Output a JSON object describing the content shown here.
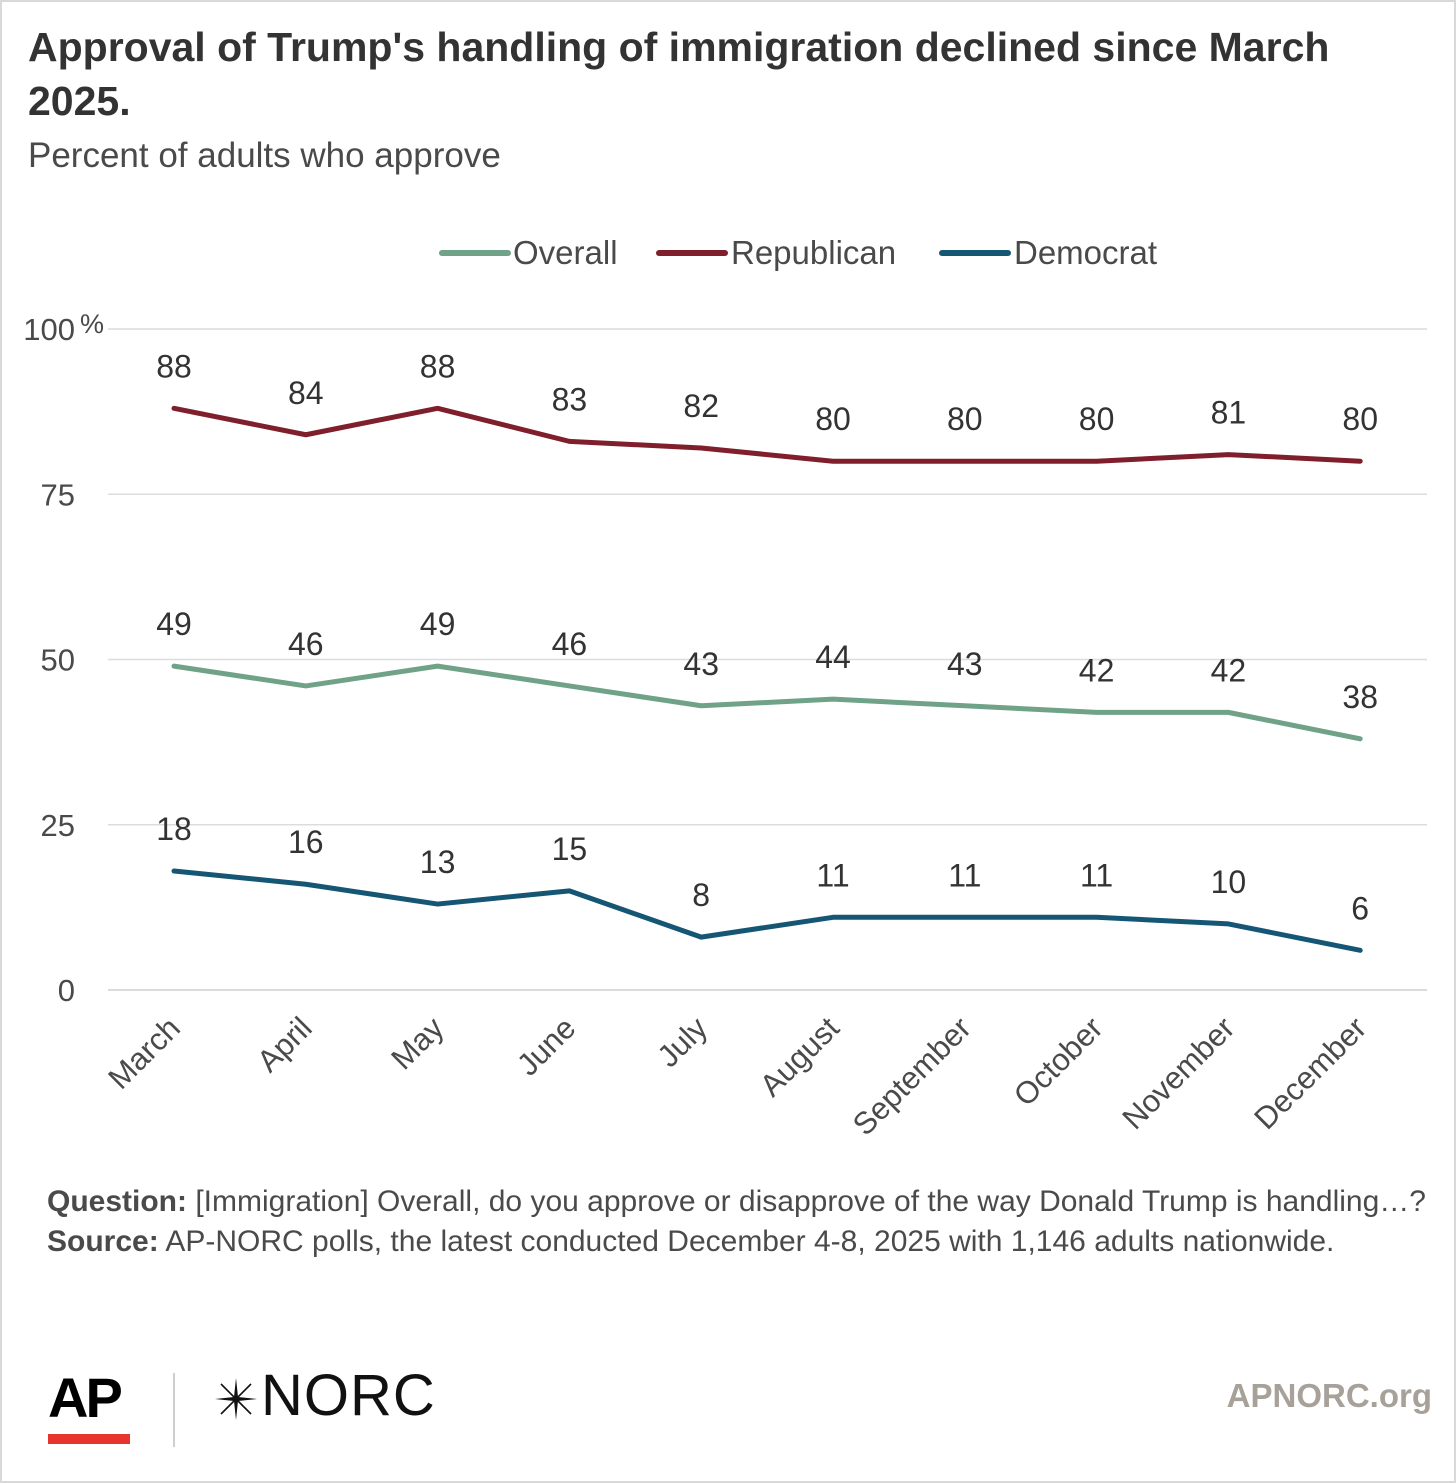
{
  "title": "Approval of Trump's handling of immigration declined since March 2025.",
  "subtitle": "Percent of adults who approve",
  "chart_data": {
    "type": "line",
    "title": "Approval of Trump's handling of immigration declined since March 2025.",
    "subtitle": "Percent of adults who approve",
    "xlabel": "",
    "ylabel": "",
    "categories": [
      "March",
      "April",
      "May",
      "June",
      "July",
      "August",
      "September",
      "October",
      "November",
      "December"
    ],
    "ylim": [
      0,
      100
    ],
    "yticks": [
      0,
      25,
      50,
      75,
      100
    ],
    "ytick_labels": [
      "0",
      "25",
      "50",
      "75",
      "100"
    ],
    "y_unit_suffix": "%",
    "grid": true,
    "legend_position": "top",
    "series": [
      {
        "name": "Overall",
        "color": "#6fa287",
        "values": [
          49,
          46,
          49,
          46,
          43,
          44,
          43,
          42,
          42,
          38
        ]
      },
      {
        "name": "Republican",
        "color": "#7f1f2c",
        "values": [
          88,
          84,
          88,
          83,
          82,
          80,
          80,
          80,
          81,
          80
        ]
      },
      {
        "name": "Democrat",
        "color": "#145673",
        "values": [
          18,
          16,
          13,
          15,
          8,
          11,
          11,
          11,
          10,
          6
        ]
      }
    ]
  },
  "notes": {
    "question_label": "Question:",
    "question_text": " [Immigration] Overall, do you approve or disapprove of the way Donald Trump is handling…?",
    "source_label": "Source:",
    "source_text": "  AP-NORC polls, the latest conducted December 4-8, 2025 with 1,146 adults nationwide."
  },
  "footer": {
    "ap_logo": "AP",
    "ap_accent_color": "#e8342e",
    "norc_logo": "NORC",
    "site": "APNORC.org"
  }
}
